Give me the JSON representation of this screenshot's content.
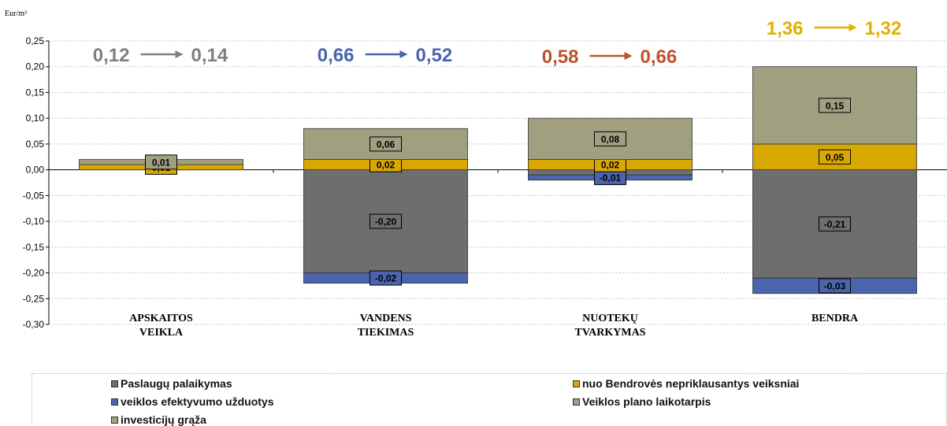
{
  "chart_data": {
    "type": "bar",
    "stacked": true,
    "yunit": "Eur/m³",
    "ylim": [
      -0.3,
      0.25
    ],
    "yticks": [
      "0,25",
      "0,20",
      "0,15",
      "0,10",
      "0,05",
      "0,00",
      "-0,05",
      "-0,10",
      "-0,15",
      "-0,20",
      "-0,25",
      "-0,30"
    ],
    "grid": true,
    "categories": [
      {
        "line1": "APSKAITOS",
        "line2": "VEIKLA"
      },
      {
        "line1": "VANDENS",
        "line2": "TIEKIMAS"
      },
      {
        "line1": "NUOTEKŲ",
        "line2": "TVARKYMAS"
      },
      {
        "line1": "BENDRA",
        "line2": ""
      }
    ],
    "series": [
      {
        "name": "Paslaugų palaikymas",
        "color": "#6e6e6e",
        "values": [
          0.0,
          -0.2,
          -0.01,
          -0.21
        ],
        "labels": [
          "",
          "-0,20",
          "-0,01",
          "-0,21"
        ]
      },
      {
        "name": "veiklos efektyvumo užduotys",
        "color": "#4a65ad",
        "values": [
          0.0,
          -0.02,
          -0.01,
          -0.03
        ],
        "labels": [
          "",
          "-0,02",
          "-0,01",
          "-0,03"
        ]
      },
      {
        "name": "nuo Bendrovės nepriklausantys veiksniai",
        "color": "#d9a800",
        "values": [
          0.01,
          0.02,
          0.02,
          0.05
        ],
        "labels": [
          "0,01",
          "0,02",
          "0,02",
          "0,05"
        ]
      },
      {
        "name": "investicijų grąža",
        "color": "#a09f80",
        "values": [
          0.01,
          0.06,
          0.08,
          0.15
        ],
        "labels": [
          "0,01",
          "0,06",
          "0,08",
          "0,15"
        ]
      },
      {
        "name": "Veiklos plano laikotarpis",
        "color": "#9a9a9a",
        "values": [
          0,
          0,
          0,
          0
        ],
        "labels": [
          "",
          "",
          "",
          ""
        ]
      }
    ],
    "price_changes": [
      {
        "from": "0,12",
        "to": "0,14",
        "color": "#808080"
      },
      {
        "from": "0,66",
        "to": "0,52",
        "color": "#4a65ad"
      },
      {
        "from": "0,58",
        "to": "0,66",
        "color": "#c0502a"
      },
      {
        "from": "1,36",
        "to": "1,32",
        "color": "#e0b000"
      }
    ],
    "legend_placement": "bottom"
  },
  "legend": [
    {
      "label": "Paslaugų palaikymas",
      "color": "#6e6e6e"
    },
    {
      "label": "nuo Bendrovės nepriklausantys veiksniai",
      "color": "#d9a800"
    },
    {
      "label": "veiklos efektyvumo užduotys",
      "color": "#4a65ad"
    },
    {
      "label": "Veiklos plano laikotarpis",
      "color": "#9a9a9a"
    },
    {
      "label": "investicijų grąža",
      "color": "#a09f80"
    }
  ]
}
